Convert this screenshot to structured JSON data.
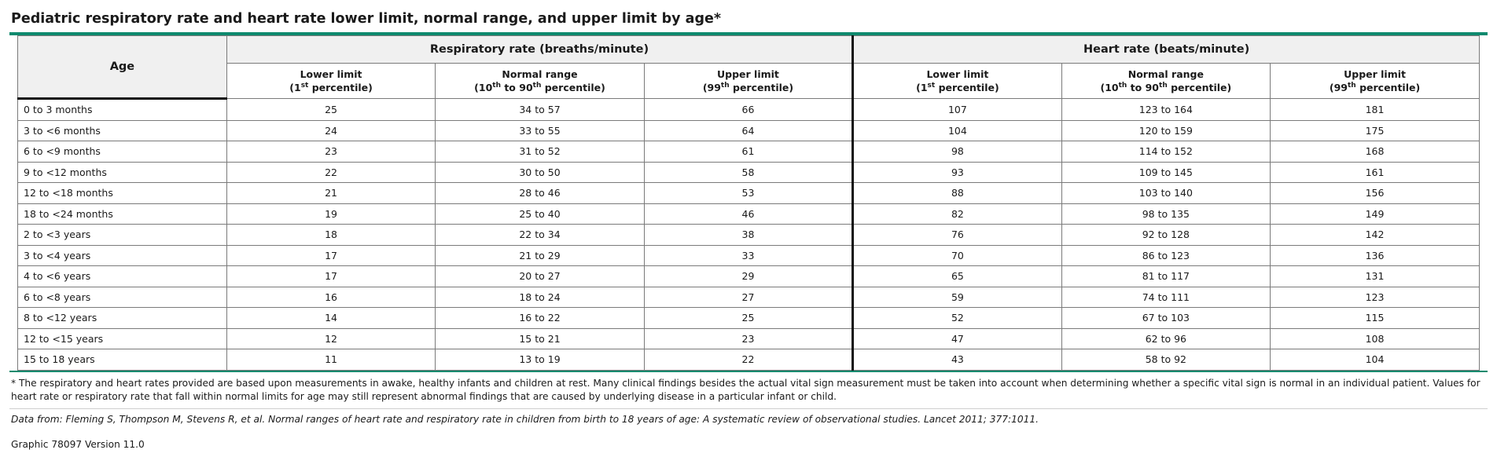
{
  "title": "Pediatric respiratory rate and heart rate lower limit, normal range, and upper limit by age*",
  "table": {
    "age_header": "Age",
    "groups": [
      {
        "label": "Respiratory rate (breaths/minute)"
      },
      {
        "label": "Heart rate (beats/minute)"
      }
    ],
    "subheaders": {
      "lower_line1": "Lower limit",
      "lower_pre": "(1",
      "lower_sup": "st",
      "lower_post": " percentile)",
      "normal_line1": "Normal range",
      "normal_pre": "(10",
      "normal_sup1": "th",
      "normal_mid": " to 90",
      "normal_sup2": "th",
      "normal_post": " percentile)",
      "upper_line1": "Upper limit",
      "upper_pre": "(99",
      "upper_sup": "th",
      "upper_post": " percentile)"
    },
    "rows": [
      {
        "age": "0 to 3 months",
        "rr_low": "25",
        "rr_norm": "34 to 57",
        "rr_up": "66",
        "hr_low": "107",
        "hr_norm": "123 to 164",
        "hr_up": "181"
      },
      {
        "age": "3 to <6 months",
        "rr_low": "24",
        "rr_norm": "33 to 55",
        "rr_up": "64",
        "hr_low": "104",
        "hr_norm": "120 to 159",
        "hr_up": "175"
      },
      {
        "age": "6 to <9 months",
        "rr_low": "23",
        "rr_norm": "31 to 52",
        "rr_up": "61",
        "hr_low": "98",
        "hr_norm": "114 to 152",
        "hr_up": "168"
      },
      {
        "age": "9 to <12 months",
        "rr_low": "22",
        "rr_norm": "30 to 50",
        "rr_up": "58",
        "hr_low": "93",
        "hr_norm": "109 to 145",
        "hr_up": "161"
      },
      {
        "age": "12 to <18 months",
        "rr_low": "21",
        "rr_norm": "28 to 46",
        "rr_up": "53",
        "hr_low": "88",
        "hr_norm": "103 to 140",
        "hr_up": "156"
      },
      {
        "age": "18 to <24 months",
        "rr_low": "19",
        "rr_norm": "25 to 40",
        "rr_up": "46",
        "hr_low": "82",
        "hr_norm": "98 to 135",
        "hr_up": "149"
      },
      {
        "age": "2 to <3 years",
        "rr_low": "18",
        "rr_norm": "22 to 34",
        "rr_up": "38",
        "hr_low": "76",
        "hr_norm": "92 to 128",
        "hr_up": "142"
      },
      {
        "age": "3 to <4 years",
        "rr_low": "17",
        "rr_norm": "21 to 29",
        "rr_up": "33",
        "hr_low": "70",
        "hr_norm": "86 to 123",
        "hr_up": "136"
      },
      {
        "age": "4 to <6 years",
        "rr_low": "17",
        "rr_norm": "20 to 27",
        "rr_up": "29",
        "hr_low": "65",
        "hr_norm": "81 to 117",
        "hr_up": "131"
      },
      {
        "age": "6 to <8 years",
        "rr_low": "16",
        "rr_norm": "18 to 24",
        "rr_up": "27",
        "hr_low": "59",
        "hr_norm": "74 to 111",
        "hr_up": "123"
      },
      {
        "age": "8 to <12 years",
        "rr_low": "14",
        "rr_norm": "16 to 22",
        "rr_up": "25",
        "hr_low": "52",
        "hr_norm": "67 to 103",
        "hr_up": "115"
      },
      {
        "age": "12 to <15 years",
        "rr_low": "12",
        "rr_norm": "15 to 21",
        "rr_up": "23",
        "hr_low": "47",
        "hr_norm": "62 to 96",
        "hr_up": "108"
      },
      {
        "age": "15 to 18 years",
        "rr_low": "11",
        "rr_norm": "13 to 19",
        "rr_up": "22",
        "hr_low": "43",
        "hr_norm": "58 to 92",
        "hr_up": "104"
      }
    ]
  },
  "footnote": "* The respiratory and heart rates provided are based upon measurements in awake, healthy infants and children at rest. Many clinical findings besides the actual vital sign measurement must be taken into account when determining whether a specific vital sign is normal in an individual patient. Values for heart rate or respiratory rate that fall within normal limits for age may still represent abnormal findings that are caused by underlying disease in a particular infant or child.",
  "source": "Data from: Fleming S, Thompson M, Stevens R, et al. Normal ranges of heart rate and respiratory rate in children from birth to 18 years of age: A systematic review of observational studies. Lancet 2011; 377:1011.",
  "version": "Graphic 78097 Version 11.0",
  "colors": {
    "accent_rule": "#0e8a6e",
    "header_bg": "#f0f0f0"
  }
}
